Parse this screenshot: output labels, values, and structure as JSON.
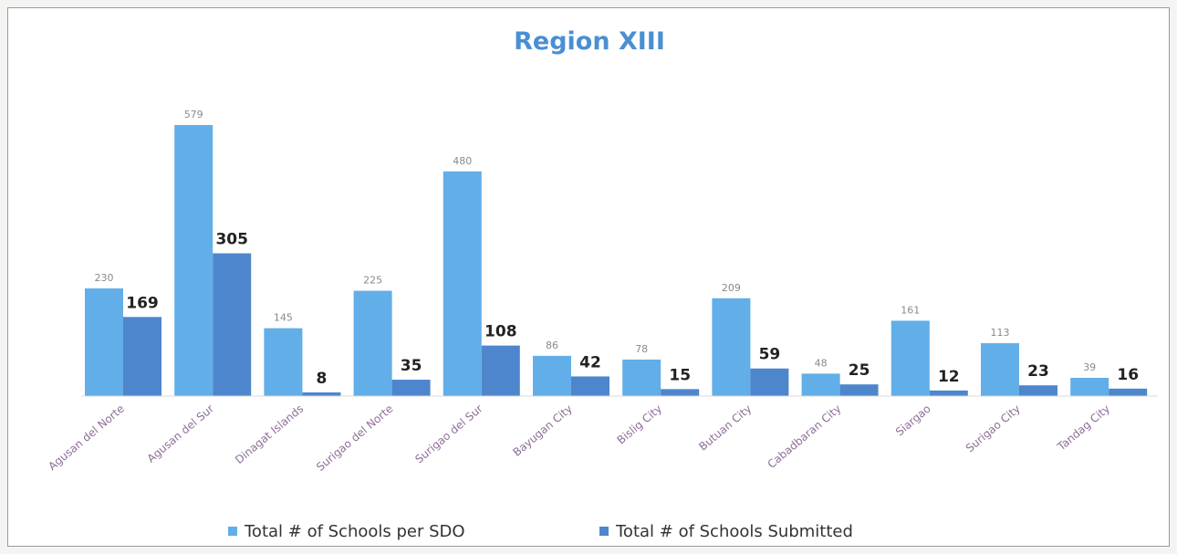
{
  "chart_data": {
    "type": "bar",
    "title": "Region XIII",
    "categories": [
      "Agusan del Norte",
      "Agusan del Sur",
      "Dinagat Islands",
      "Surigao del Norte",
      "Surigao del Sur",
      "Bayugan City",
      "Bislig City",
      "Butuan City",
      "Cabadbaran City",
      "Siargao",
      "Surigao City",
      "Tandag City"
    ],
    "series": [
      {
        "name": "Total # of Schools per SDO",
        "values": [
          230,
          579,
          145,
          225,
          480,
          86,
          78,
          209,
          48,
          161,
          113,
          39
        ],
        "color": "#62aee8"
      },
      {
        "name": "Total # of Schools Submitted",
        "values": [
          169,
          305,
          8,
          35,
          108,
          42,
          15,
          59,
          25,
          12,
          23,
          16
        ],
        "color": "#4d86cc"
      }
    ],
    "ylim": [
      0,
      600
    ],
    "grid": false,
    "legend": "bottom",
    "colors": {
      "title": "#4a8fd4",
      "category_labels": "#8e6e98",
      "frame": "#9a9a9a"
    }
  }
}
